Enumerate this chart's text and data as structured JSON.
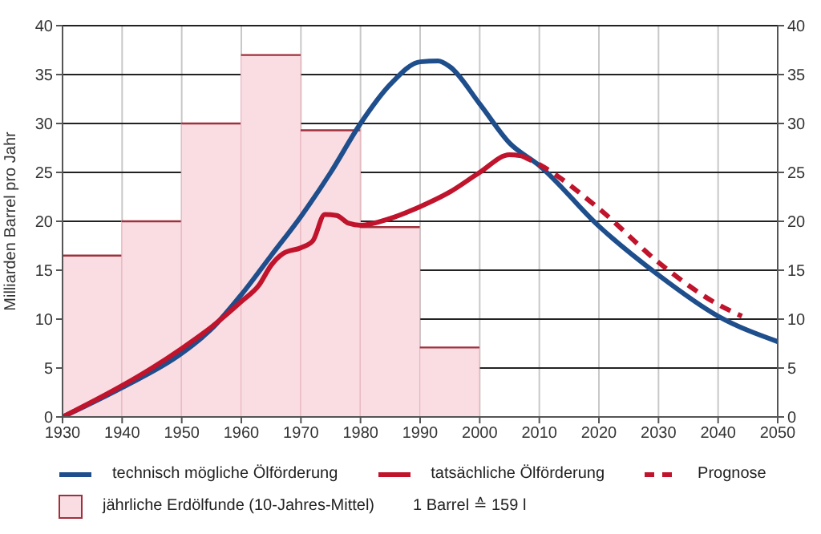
{
  "chart_data": {
    "type": "line",
    "ylabel": "Milliarden Barrel pro Jahr",
    "xlim": [
      1930,
      2050
    ],
    "xticks": [
      1930,
      1940,
      1950,
      1960,
      1970,
      1980,
      1990,
      2000,
      2010,
      2020,
      2030,
      2040,
      2050
    ],
    "ylim": [
      0,
      40
    ],
    "yticks": [
      0,
      5,
      10,
      15,
      20,
      25,
      30,
      35,
      40
    ],
    "y2lim": [
      0,
      40
    ],
    "y2ticks": [
      0,
      5,
      10,
      15,
      20,
      25,
      30,
      35,
      40
    ],
    "grid": true,
    "legend": "bottom",
    "marker": "none",
    "series": [
      {
        "name": "jährliche Erdölfunde (10-Jahres-Mittel)",
        "type": "bar",
        "color": "#f9dde2",
        "x": [
          1935,
          1945,
          1955,
          1965,
          1975,
          1985,
          1995
        ],
        "values": [
          16.5,
          20,
          30,
          37,
          29.3,
          19.4,
          7.1
        ]
      },
      {
        "name": "technisch mögliche Ölförderung",
        "color": "#1f4e8c",
        "line_style": "solid",
        "x": [
          1930,
          1940,
          1950,
          1955,
          1960,
          1965,
          1970,
          1975,
          1980,
          1985,
          1990,
          1993,
          1995,
          2000,
          2005,
          2010,
          2020,
          2030,
          2040,
          2050
        ],
        "values": [
          0,
          3,
          6.5,
          9,
          12.5,
          16.5,
          20.5,
          25,
          30,
          34,
          36.3,
          36.4,
          35.8,
          32,
          28,
          25.7,
          19.5,
          14.5,
          10.3,
          7.7
        ]
      },
      {
        "name": "tatsächliche Ölförderung",
        "color": "#c0132c",
        "line_style": "solid",
        "x": [
          1930,
          1940,
          1945,
          1950,
          1955,
          1960,
          1963,
          1965,
          1967,
          1970,
          1972,
          1974,
          1976,
          1978,
          1980,
          1985,
          1990,
          1995,
          2000,
          2005,
          2007
        ],
        "values": [
          0,
          3.2,
          5,
          7,
          9.2,
          11.8,
          13.5,
          15.5,
          16.7,
          17.3,
          18,
          20.7,
          20.6,
          19.8,
          19.6,
          20.3,
          21.5,
          23,
          25,
          26.8,
          26.7
        ]
      },
      {
        "name": "Prognose",
        "color": "#c0132c",
        "line_style": "dashed",
        "x": [
          2007,
          2010,
          2020,
          2030,
          2040,
          2044
        ],
        "values": [
          26.7,
          25.8,
          21.3,
          15.8,
          11.5,
          10.3
        ]
      }
    ],
    "annotations": [
      "1 Barrel ≙ 159 l"
    ]
  }
}
